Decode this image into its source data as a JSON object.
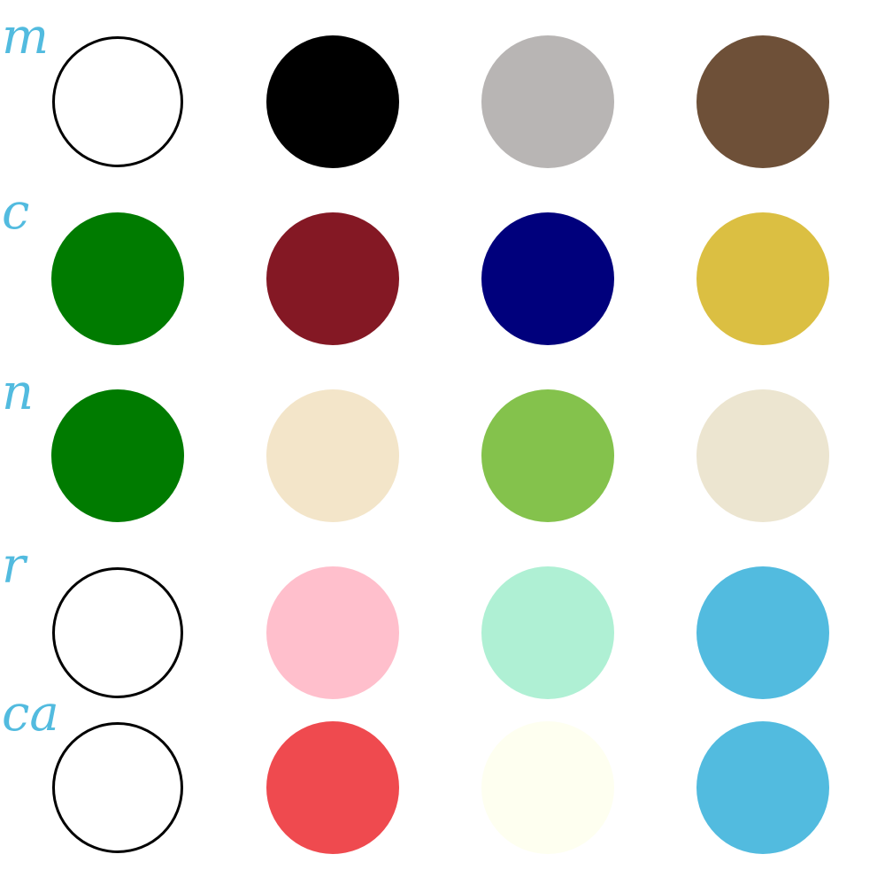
{
  "rows": [
    {
      "label": "m",
      "swatches": [
        {
          "color": "#ffffff",
          "outlined": true
        },
        {
          "color": "#000000",
          "outlined": false
        },
        {
          "color": "#b8b5b4",
          "outlined": false
        },
        {
          "color": "#6e5038",
          "outlined": false
        }
      ]
    },
    {
      "label": "c",
      "swatches": [
        {
          "color": "#007b00",
          "outlined": false
        },
        {
          "color": "#841824",
          "outlined": false
        },
        {
          "color": "#00007c",
          "outlined": false
        },
        {
          "color": "#dbbf42",
          "outlined": false
        }
      ]
    },
    {
      "label": "n",
      "swatches": [
        {
          "color": "#007b00",
          "outlined": false
        },
        {
          "color": "#f3e5c9",
          "outlined": false
        },
        {
          "color": "#84c24c",
          "outlined": false
        },
        {
          "color": "#ece5d0",
          "outlined": false
        }
      ]
    },
    {
      "label": "r",
      "swatches": [
        {
          "color": "#ffffff",
          "outlined": true
        },
        {
          "color": "#ffbfcc",
          "outlined": false
        },
        {
          "color": "#aff0d4",
          "outlined": false
        },
        {
          "color": "#52bbdf",
          "outlined": false
        }
      ]
    },
    {
      "label": "ca",
      "swatches": [
        {
          "color": "#ffffff",
          "outlined": true
        },
        {
          "color": "#ef4a4f",
          "outlined": false
        },
        {
          "color": "#fefff0",
          "outlined": false
        },
        {
          "color": "#52bbdf",
          "outlined": false
        }
      ]
    }
  ]
}
